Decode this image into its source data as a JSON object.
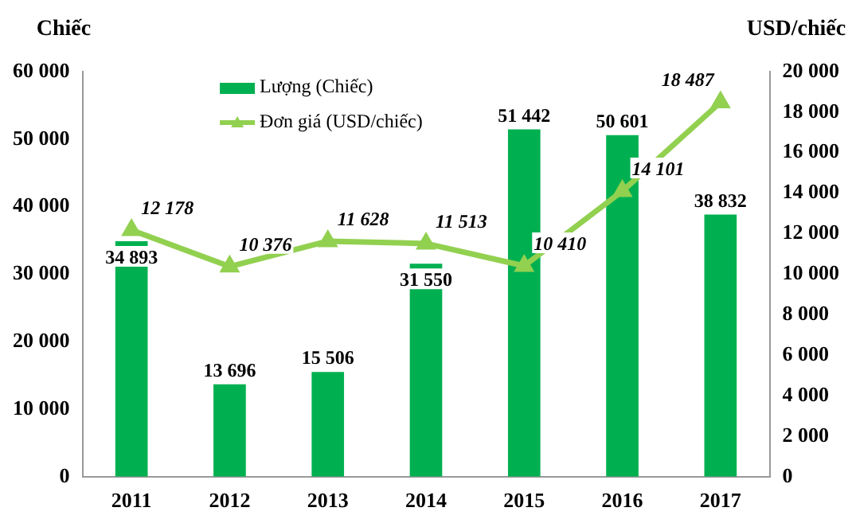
{
  "chart_data": {
    "type": "bar",
    "categories": [
      "2011",
      "2012",
      "2013",
      "2014",
      "2015",
      "2016",
      "2017"
    ],
    "ylabel": "Chiếc",
    "y2label": "USD/chiếc",
    "series": [
      {
        "name": "Lượng (Chiếc)",
        "color": "#00b050",
        "values": [
          34893,
          13696,
          15506,
          31550,
          51442,
          50601,
          38832
        ],
        "value_labels": [
          "34 893",
          "13 696",
          "15 506",
          "31 550",
          "51 442",
          "50 601",
          "38 832"
        ]
      },
      {
        "name": "Đơn giá (USD/chiếc)",
        "type": "line",
        "axis": "y2",
        "color": "#92d050",
        "marker": "triangle",
        "values": [
          12178,
          10376,
          11628,
          11513,
          10410,
          14101,
          18487
        ],
        "value_labels": [
          "12 178",
          "10 376",
          "11 628",
          "11 513",
          "10 410",
          "14 101",
          "18 487"
        ]
      }
    ],
    "ylim": [
      0,
      60000
    ],
    "yticks": [
      {
        "value": 0,
        "label": "0"
      },
      {
        "value": 10000,
        "label": "10 000"
      },
      {
        "value": 20000,
        "label": "20 000"
      },
      {
        "value": 30000,
        "label": "30 000"
      },
      {
        "value": 40000,
        "label": "40 000"
      },
      {
        "value": 50000,
        "label": "50 000"
      },
      {
        "value": 60000,
        "label": "60 000"
      }
    ],
    "y2lim": [
      0,
      20000
    ],
    "y2ticks": [
      {
        "value": 0,
        "label": "0"
      },
      {
        "value": 2000,
        "label": "2 000"
      },
      {
        "value": 4000,
        "label": "4 000"
      },
      {
        "value": 6000,
        "label": "6 000"
      },
      {
        "value": 8000,
        "label": "8 000"
      },
      {
        "value": 10000,
        "label": "10 000"
      },
      {
        "value": 12000,
        "label": "12 000"
      },
      {
        "value": 14000,
        "label": "14 000"
      },
      {
        "value": 16000,
        "label": "16 000"
      },
      {
        "value": 18000,
        "label": "18 000"
      },
      {
        "value": 20000,
        "label": "20 000"
      }
    ],
    "legend": "top",
    "grid": false
  }
}
